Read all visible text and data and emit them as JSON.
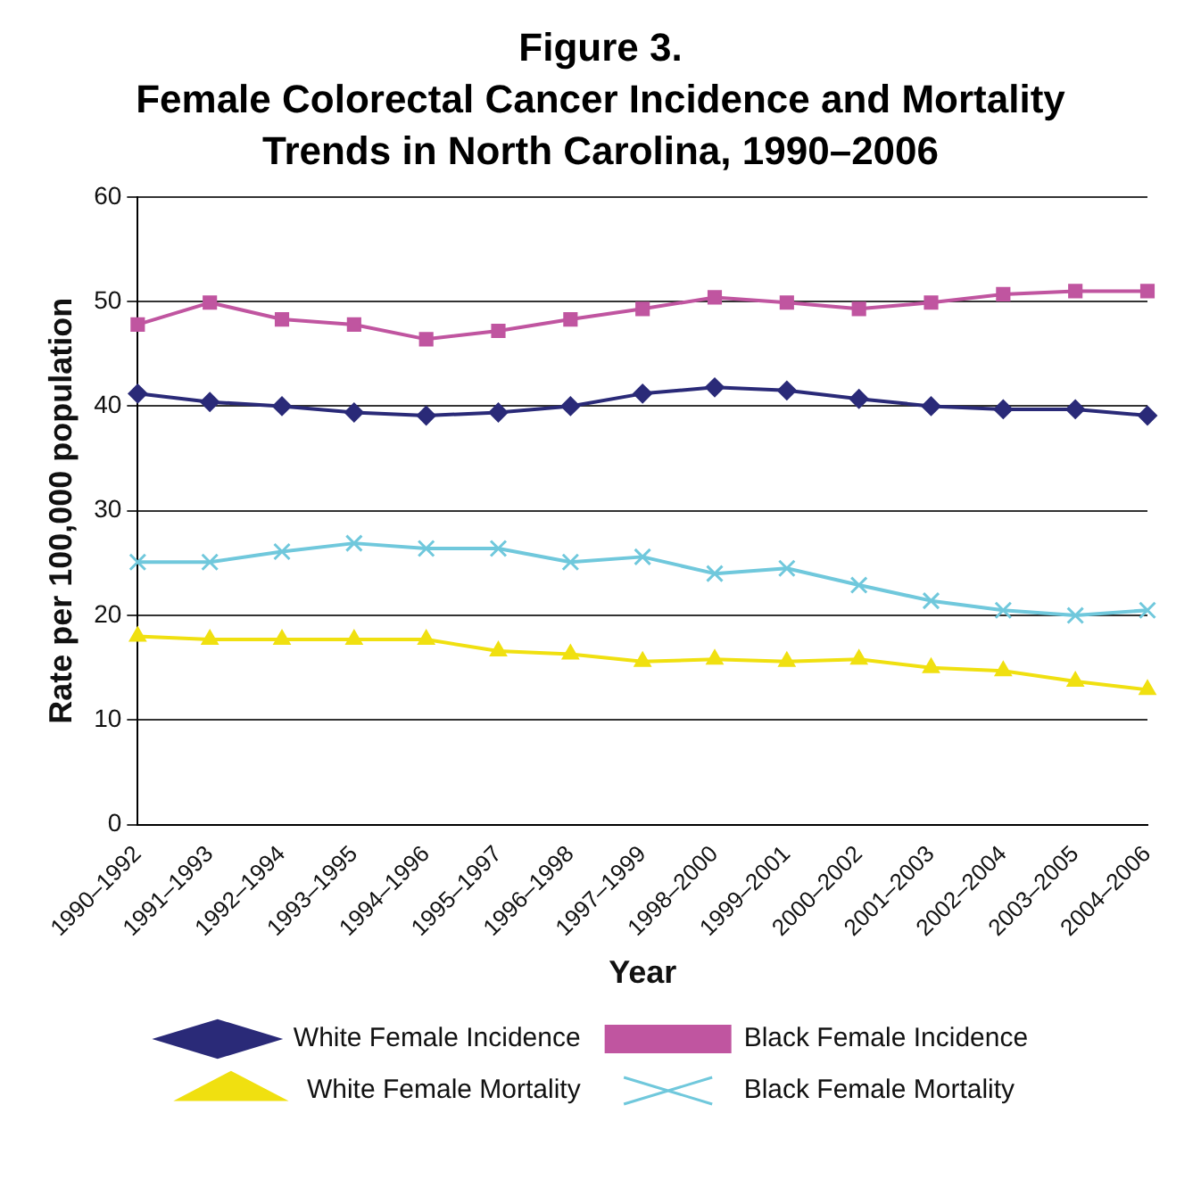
{
  "chart_data": {
    "type": "line",
    "title": "Figure 3.",
    "subtitle": "Female Colorectal Cancer Incidence and Mortality Trends in North Carolina, 1990–2006",
    "xlabel": "Year",
    "ylabel": "Rate per 100,000 population",
    "categories": [
      "1990–1992",
      "1991–1993",
      "1992–1994",
      "1993–1995",
      "1994–1996",
      "1995–1997",
      "1996–1998",
      "1997–1999",
      "1998–2000",
      "1999–2001",
      "2000–2002",
      "2001–2003",
      "2002–2004",
      "2003–2005",
      "2004–2006"
    ],
    "series": [
      {
        "name": "White Female Incidence",
        "color": "#2a2a78",
        "marker": "diamond",
        "values": [
          41.2,
          40.4,
          40,
          39.4,
          39.1,
          39.4,
          40,
          41.2,
          41.8,
          41.5,
          40.7,
          40,
          39.7,
          39.7,
          39.1
        ]
      },
      {
        "name": "Black Female Incidence",
        "color": "#c055a0",
        "marker": "square",
        "values": [
          47.8,
          49.9,
          48.3,
          47.8,
          46.4,
          47.2,
          48.3,
          49.3,
          50.4,
          49.9,
          49.3,
          49.9,
          50.7,
          51,
          51
        ]
      },
      {
        "name": "White Female Mortality",
        "color": "#f0e010",
        "marker": "triangle",
        "values": [
          18,
          17.7,
          17.7,
          17.7,
          17.7,
          16.6,
          16.3,
          15.6,
          15.8,
          15.6,
          15.8,
          15,
          14.7,
          13.7,
          12.9
        ]
      },
      {
        "name": "Black Female Mortality",
        "color": "#70c8dc",
        "marker": "cross",
        "values": [
          25.1,
          25.1,
          26.1,
          26.9,
          26.4,
          26.4,
          25.1,
          25.6,
          24,
          24.5,
          22.9,
          21.4,
          20.5,
          20,
          20.5
        ]
      }
    ],
    "ylim": [
      0,
      60
    ],
    "yticks": [
      0,
      10,
      20,
      30,
      40,
      50,
      60
    ],
    "grid": "y",
    "legend": "bottom"
  }
}
